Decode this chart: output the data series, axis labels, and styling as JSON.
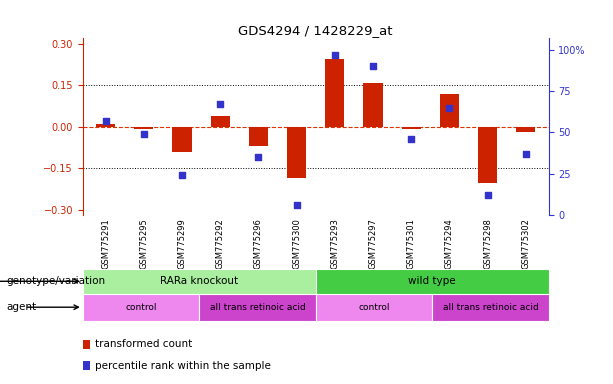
{
  "title": "GDS4294 / 1428229_at",
  "samples": [
    "GSM775291",
    "GSM775295",
    "GSM775299",
    "GSM775292",
    "GSM775296",
    "GSM775300",
    "GSM775293",
    "GSM775297",
    "GSM775301",
    "GSM775294",
    "GSM775298",
    "GSM775302"
  ],
  "bar_values": [
    0.01,
    -0.01,
    -0.09,
    0.04,
    -0.07,
    -0.185,
    0.245,
    0.16,
    -0.01,
    0.12,
    -0.205,
    -0.02
  ],
  "dot_values": [
    57,
    49,
    24,
    67,
    35,
    6,
    97,
    90,
    46,
    65,
    12,
    37
  ],
  "bar_color": "#cc2200",
  "dot_color": "#3333cc",
  "zero_line_color": "#dd3300",
  "yticks_left": [
    -0.3,
    -0.15,
    0.0,
    0.15,
    0.3
  ],
  "yticks_right": [
    0,
    25,
    50,
    75,
    100
  ],
  "ylim_left": [
    -0.32,
    0.32
  ],
  "ylim_right": [
    0,
    107
  ],
  "genotype_groups": [
    {
      "label": "RARa knockout",
      "start": 0,
      "end": 6,
      "color": "#aaeea0"
    },
    {
      "label": "wild type",
      "start": 6,
      "end": 12,
      "color": "#44cc44"
    }
  ],
  "agent_groups": [
    {
      "label": "control",
      "start": 0,
      "end": 3,
      "color": "#ee88ee"
    },
    {
      "label": "all trans retinoic acid",
      "start": 3,
      "end": 6,
      "color": "#cc44cc"
    },
    {
      "label": "control",
      "start": 6,
      "end": 9,
      "color": "#ee88ee"
    },
    {
      "label": "all trans retinoic acid",
      "start": 9,
      "end": 12,
      "color": "#cc44cc"
    }
  ],
  "legend_items": [
    {
      "label": "transformed count",
      "color": "#cc2200"
    },
    {
      "label": "percentile rank within the sample",
      "color": "#3333cc"
    }
  ],
  "genotype_label": "genotype/variation",
  "agent_label": "agent",
  "bar_width": 0.5
}
